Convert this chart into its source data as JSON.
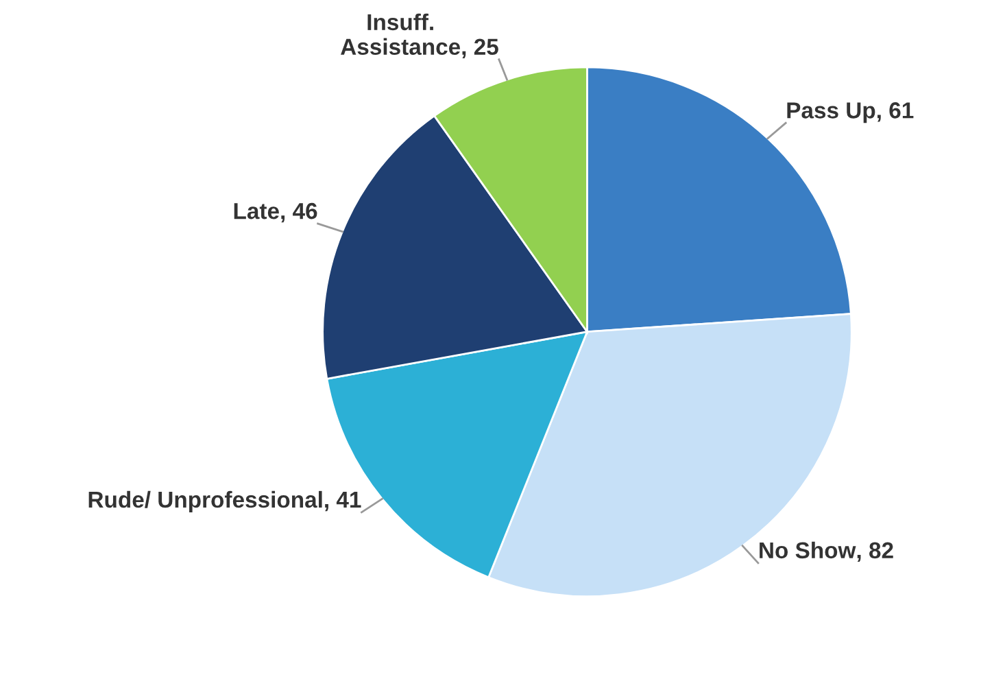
{
  "chart_data": {
    "type": "pie",
    "categories": [
      "Pass Up",
      "No Show",
      "Rude/ Unprofessional",
      "Late",
      "Insuff.\nAssistance"
    ],
    "values": [
      61,
      82,
      41,
      46,
      25
    ],
    "colors": [
      "#3a7ec4",
      "#c6e0f7",
      "#2cb0d6",
      "#1f3f72",
      "#92d050"
    ],
    "value_labels": [
      ", 61",
      ", 82",
      ", 41",
      ", 46",
      ", 25"
    ]
  }
}
